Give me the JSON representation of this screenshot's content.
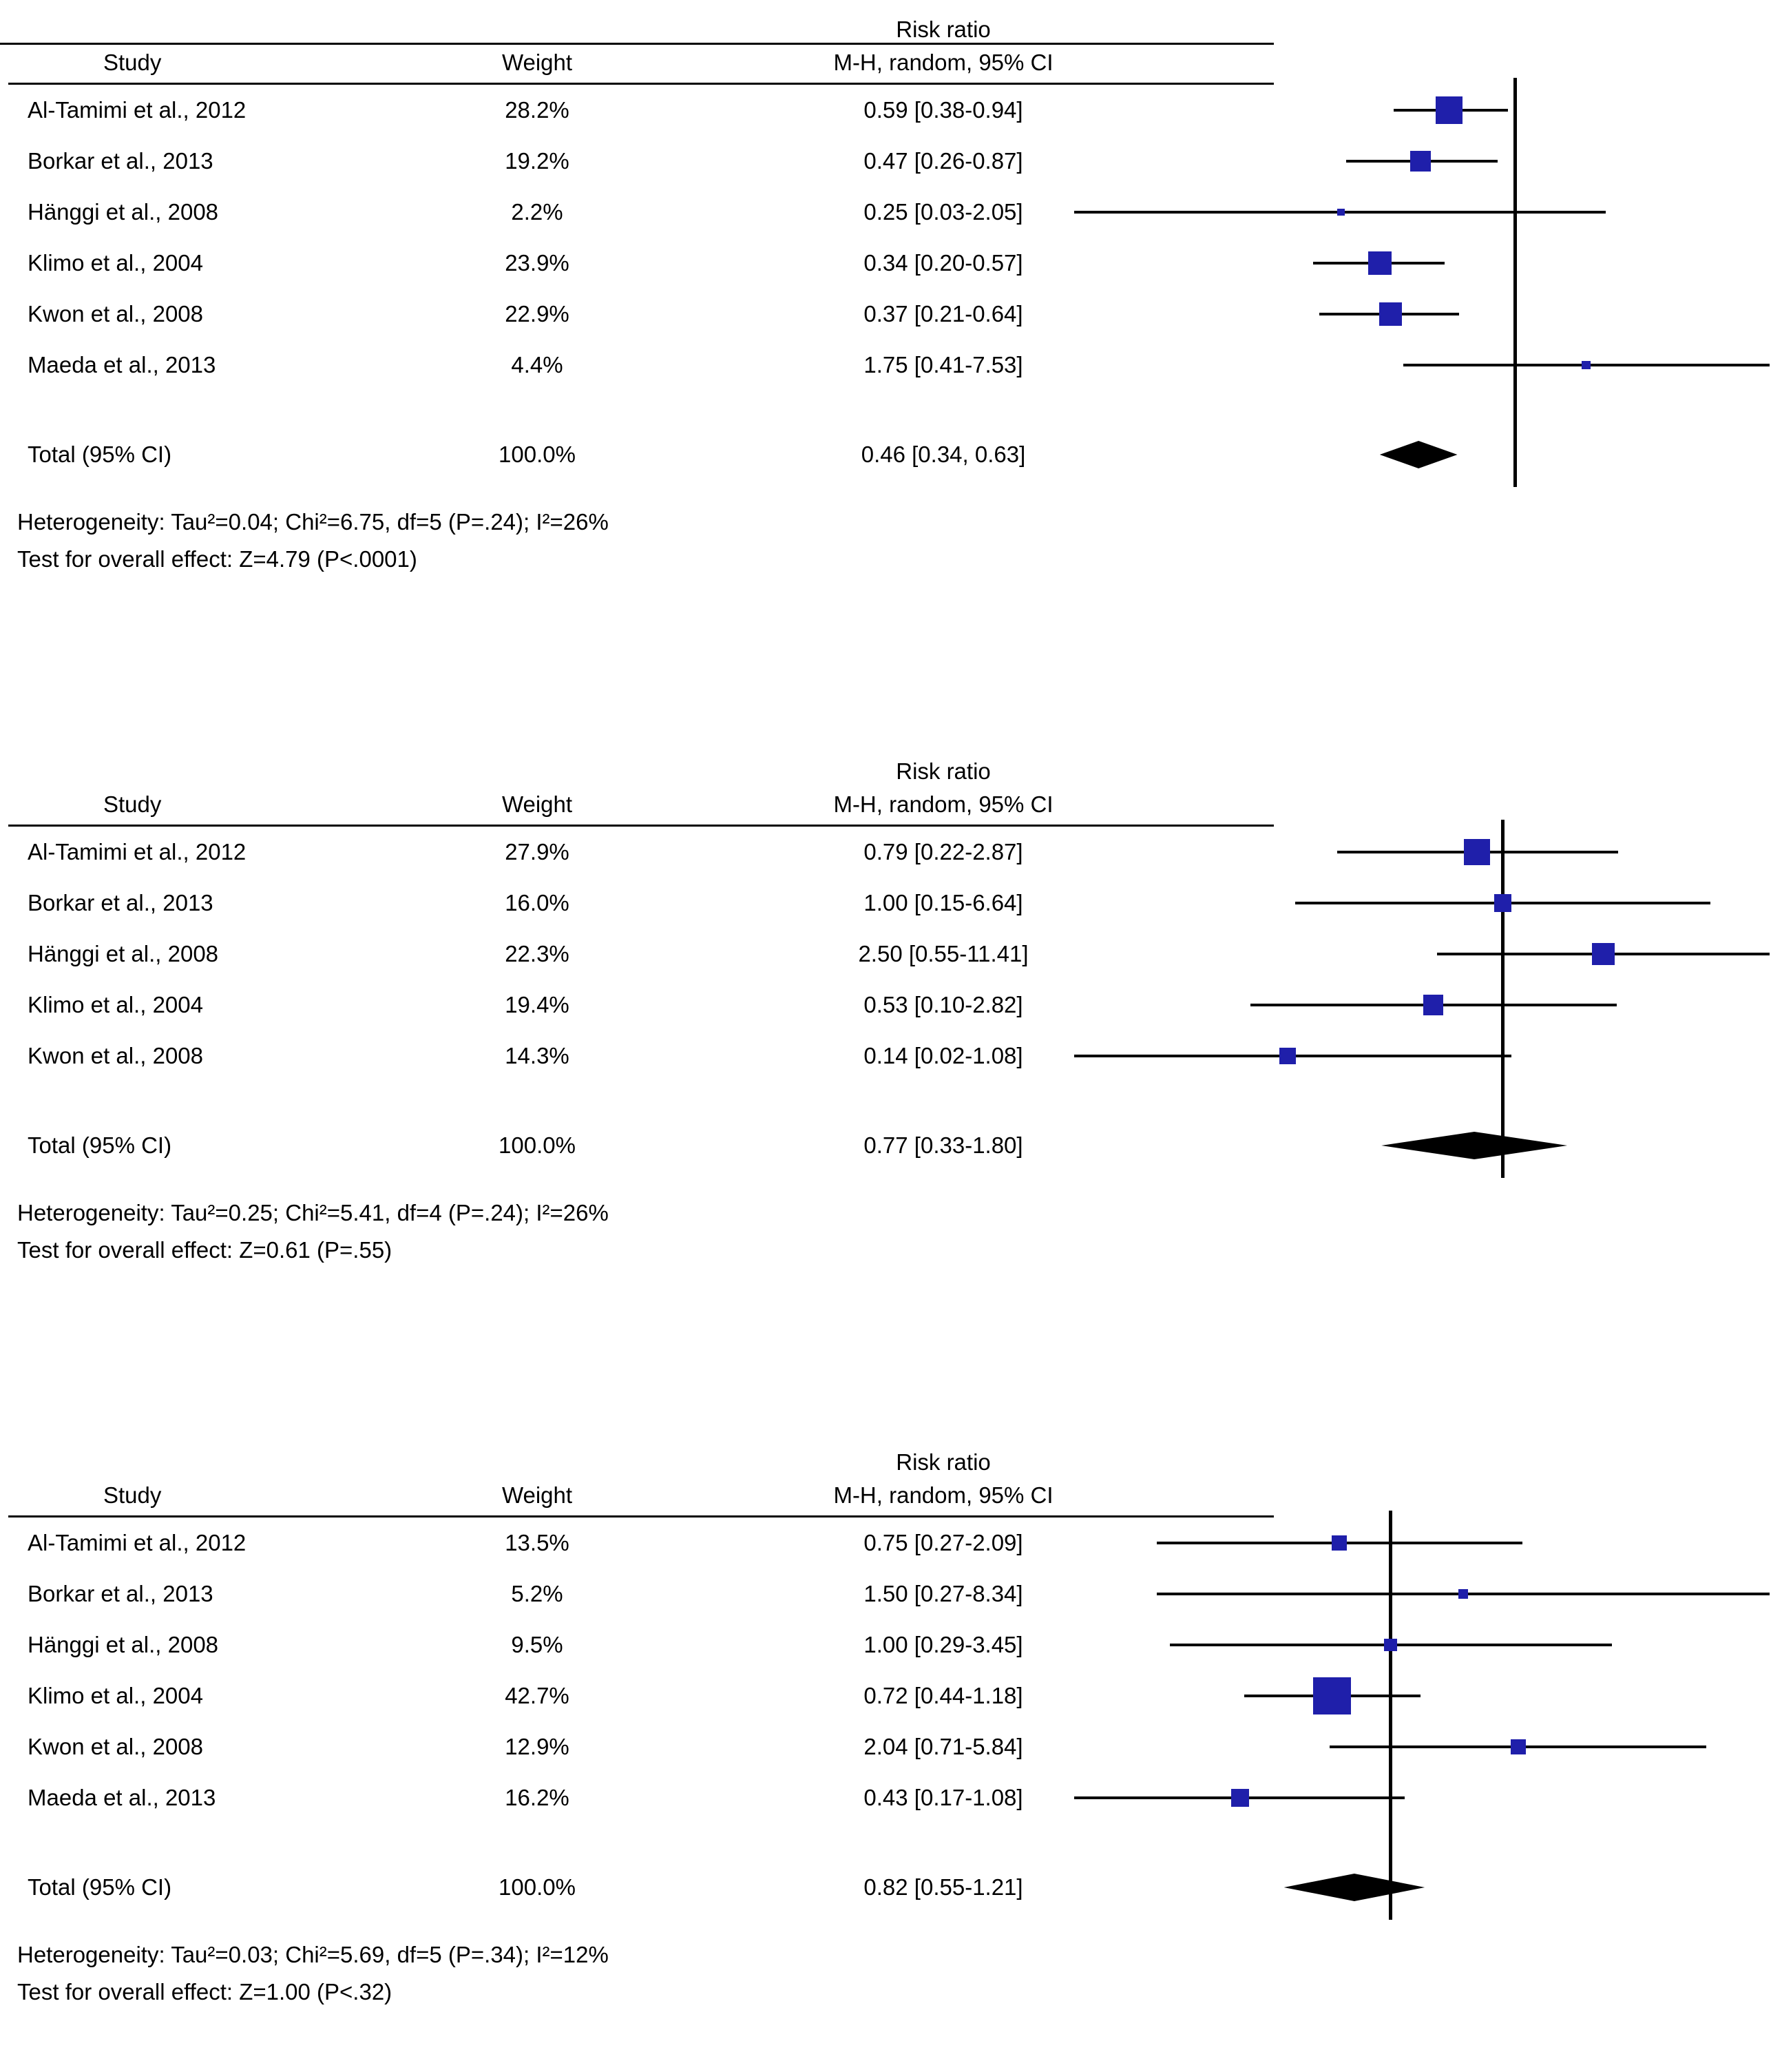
{
  "colors": {
    "marker_color": "#1f1faa",
    "line_color": "#000000",
    "diamond_color": "#000000"
  },
  "chart_data": [
    {
      "type": "forest",
      "panel": 1,
      "x_scale": "log",
      "x_reference": 1,
      "header_top_rule": true,
      "columns": {
        "study": "Study",
        "weight": "Weight",
        "rr_line1": "Risk ratio",
        "rr_line2": "M-H, random, 95% CI"
      },
      "studies": [
        {
          "name": "Al-Tamimi et al., 2012",
          "weight_pct": 28.2,
          "weight_label": "28.2%",
          "rr_label": "0.59 [0.38-0.94]",
          "est": 0.59,
          "ci_low": 0.38,
          "ci_high": 0.94
        },
        {
          "name": "Borkar et al., 2013",
          "weight_pct": 19.2,
          "weight_label": "19.2%",
          "rr_label": "0.47 [0.26-0.87]",
          "est": 0.47,
          "ci_low": 0.26,
          "ci_high": 0.87
        },
        {
          "name": "Hänggi et al., 2008",
          "weight_pct": 2.2,
          "weight_label": "2.2%",
          "rr_label": "0.25 [0.03-2.05]",
          "est": 0.25,
          "ci_low": 0.03,
          "ci_high": 2.05
        },
        {
          "name": "Klimo et al., 2004",
          "weight_pct": 23.9,
          "weight_label": "23.9%",
          "rr_label": "0.34 [0.20-0.57]",
          "est": 0.34,
          "ci_low": 0.2,
          "ci_high": 0.57
        },
        {
          "name": "Kwon et al., 2008",
          "weight_pct": 22.9,
          "weight_label": "22.9%",
          "rr_label": "0.37 [0.21-0.64]",
          "est": 0.37,
          "ci_low": 0.21,
          "ci_high": 0.64
        },
        {
          "name": "Maeda et al., 2013",
          "weight_pct": 4.4,
          "weight_label": "4.4%",
          "rr_label": "1.75 [0.41-7.53]",
          "est": 1.75,
          "ci_low": 0.41,
          "ci_high": 7.53
        }
      ],
      "total": {
        "name": "Total (95% CI)",
        "weight_label": "100.0%",
        "rr_label": "0.46 [0.34, 0.63]",
        "est": 0.46,
        "ci_low": 0.34,
        "ci_high": 0.63
      },
      "heterogeneity": "Heterogeneity: Tau²=0.04; Chi²=6.75, df=5 (P=.24); I²=26%",
      "overall_effect": "Test for overall effect: Z=4.79 (P<.0001)"
    },
    {
      "type": "forest",
      "panel": 2,
      "x_scale": "log",
      "x_reference": 1,
      "header_top_rule": false,
      "columns": {
        "study": "Study",
        "weight": "Weight",
        "rr_line1": "Risk ratio",
        "rr_line2": "M-H, random, 95% CI"
      },
      "studies": [
        {
          "name": "Al-Tamimi et al., 2012",
          "weight_pct": 27.9,
          "weight_label": "27.9%",
          "rr_label": "0.79 [0.22-2.87]",
          "est": 0.79,
          "ci_low": 0.22,
          "ci_high": 2.87
        },
        {
          "name": "Borkar et al., 2013",
          "weight_pct": 16.0,
          "weight_label": "16.0%",
          "rr_label": "1.00 [0.15-6.64]",
          "est": 1.0,
          "ci_low": 0.15,
          "ci_high": 6.64
        },
        {
          "name": "Hänggi et al., 2008",
          "weight_pct": 22.3,
          "weight_label": "22.3%",
          "rr_label": "2.50 [0.55-11.41]",
          "est": 2.5,
          "ci_low": 0.55,
          "ci_high": 11.41
        },
        {
          "name": "Klimo et al., 2004",
          "weight_pct": 19.4,
          "weight_label": "19.4%",
          "rr_label": "0.53 [0.10-2.82]",
          "est": 0.53,
          "ci_low": 0.1,
          "ci_high": 2.82
        },
        {
          "name": "Kwon et al., 2008",
          "weight_pct": 14.3,
          "weight_label": "14.3%",
          "rr_label": "0.14 [0.02-1.08]",
          "est": 0.14,
          "ci_low": 0.02,
          "ci_high": 1.08
        }
      ],
      "total": {
        "name": "Total (95% CI)",
        "weight_label": "100.0%",
        "rr_label": "0.77 [0.33-1.80]",
        "est": 0.77,
        "ci_low": 0.33,
        "ci_high": 1.8
      },
      "heterogeneity": "Heterogeneity: Tau²=0.25; Chi²=5.41, df=4 (P=.24); I²=26%",
      "overall_effect": "Test for overall effect: Z=0.61 (P=.55)"
    },
    {
      "type": "forest",
      "panel": 3,
      "x_scale": "log",
      "x_reference": 1,
      "header_top_rule": false,
      "columns": {
        "study": "Study",
        "weight": "Weight",
        "rr_line1": "Risk ratio",
        "rr_line2": "M-H, random, 95% CI"
      },
      "studies": [
        {
          "name": "Al-Tamimi et al., 2012",
          "weight_pct": 13.5,
          "weight_label": "13.5%",
          "rr_label": "0.75 [0.27-2.09]",
          "est": 0.75,
          "ci_low": 0.27,
          "ci_high": 2.09
        },
        {
          "name": "Borkar et al., 2013",
          "weight_pct": 5.2,
          "weight_label": "5.2%",
          "rr_label": "1.50 [0.27-8.34]",
          "est": 1.5,
          "ci_low": 0.27,
          "ci_high": 8.34
        },
        {
          "name": "Hänggi et al., 2008",
          "weight_pct": 9.5,
          "weight_label": "9.5%",
          "rr_label": "1.00 [0.29-3.45]",
          "est": 1.0,
          "ci_low": 0.29,
          "ci_high": 3.45
        },
        {
          "name": "Klimo et al., 2004",
          "weight_pct": 42.7,
          "weight_label": "42.7%",
          "rr_label": "0.72 [0.44-1.18]",
          "est": 0.72,
          "ci_low": 0.44,
          "ci_high": 1.18
        },
        {
          "name": "Kwon et al., 2008",
          "weight_pct": 12.9,
          "weight_label": "12.9%",
          "rr_label": "2.04 [0.71-5.84]",
          "est": 2.04,
          "ci_low": 0.71,
          "ci_high": 5.84
        },
        {
          "name": "Maeda et al., 2013",
          "weight_pct": 16.2,
          "weight_label": "16.2%",
          "rr_label": "0.43 [0.17-1.08]",
          "est": 0.43,
          "ci_low": 0.17,
          "ci_high": 1.08
        }
      ],
      "total": {
        "name": "Total (95% CI)",
        "weight_label": "100.0%",
        "rr_label": "0.82 [0.55-1.21]",
        "est": 0.82,
        "ci_low": 0.55,
        "ci_high": 1.21
      },
      "heterogeneity": "Heterogeneity: Tau²=0.03; Chi²=5.69, df=5 (P=.34); I²=12%",
      "overall_effect": "Test for overall effect: Z=1.00 (P<.32)"
    }
  ]
}
